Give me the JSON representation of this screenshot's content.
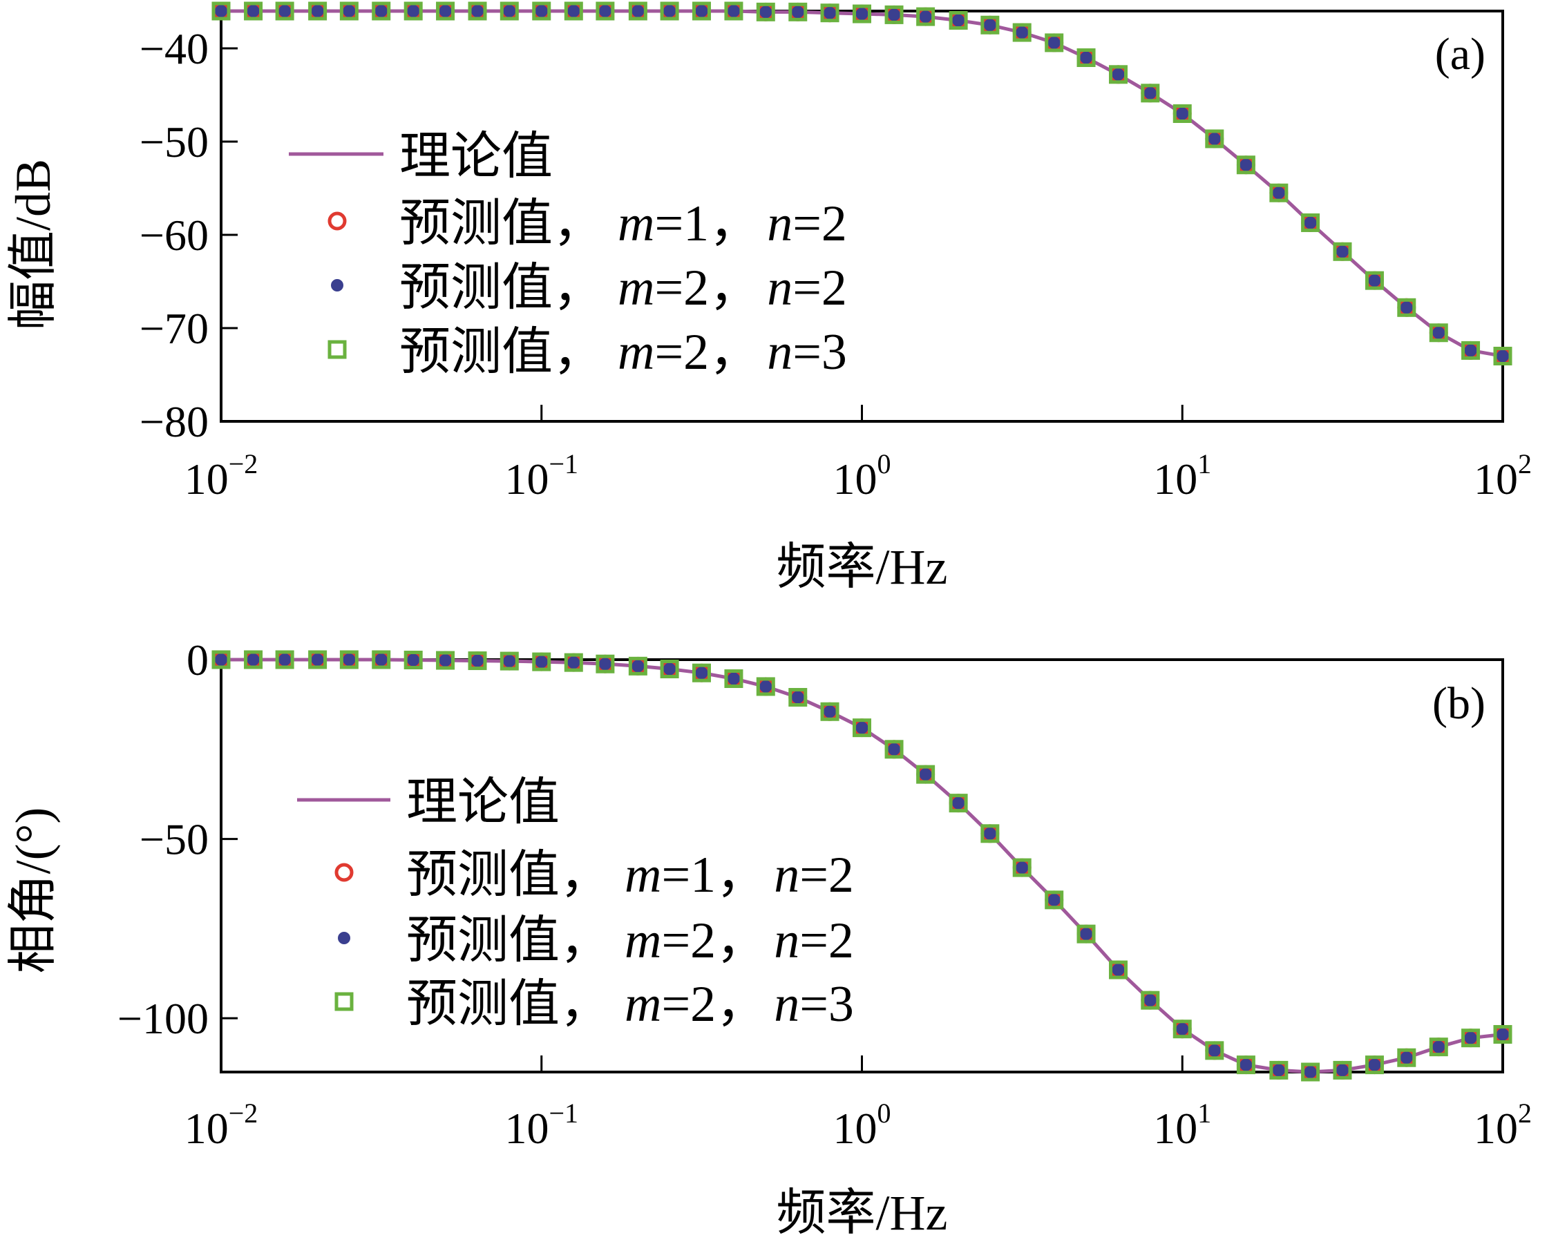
{
  "figure": {
    "panel_count": 2
  },
  "colors": {
    "theory_line": "#a0589b",
    "pred_m1n2": "#e03a30",
    "pred_m2n2": "#3a3f8f",
    "pred_m2n3": "#6ab23f",
    "axes": "#000000"
  },
  "chart_data": [
    {
      "type": "line",
      "panel_label": "(a)",
      "xlabel": "频率/Hz",
      "ylabel": "幅值/dB",
      "xscale": "log",
      "xlim": [
        0.01,
        100
      ],
      "ylim": [
        -80,
        -36
      ],
      "x_ticks": [
        {
          "base": "10",
          "exp": "−2",
          "value": 0.01
        },
        {
          "base": "10",
          "exp": "−1",
          "value": 0.1
        },
        {
          "base": "10",
          "exp": "0",
          "value": 1
        },
        {
          "base": "10",
          "exp": "1",
          "value": 10
        },
        {
          "base": "10",
          "exp": "2",
          "value": 100
        }
      ],
      "y_ticks": [
        {
          "label": "−40",
          "value": -40
        },
        {
          "label": "−50",
          "value": -50
        },
        {
          "label": "−60",
          "value": -60
        },
        {
          "label": "−70",
          "value": -70
        },
        {
          "label": "−80",
          "value": -80
        }
      ],
      "legend": {
        "placement": "left",
        "entries": [
          {
            "pre": "理论值",
            "m": "",
            "n": "",
            "marker": "line"
          },
          {
            "pre": "预测值，",
            "m": "=1，",
            "n": "=2",
            "marker": "circle"
          },
          {
            "pre": "预测值，",
            "m": "=2，",
            "n": "=2",
            "marker": "dot"
          },
          {
            "pre": "预测值，",
            "m": "=2，",
            "n": "=3",
            "marker": "square"
          }
        ]
      },
      "x": [
        0.01,
        0.0126,
        0.0158,
        0.02,
        0.0251,
        0.0316,
        0.0398,
        0.0501,
        0.0631,
        0.0794,
        0.1,
        0.126,
        0.158,
        0.2,
        0.251,
        0.316,
        0.398,
        0.501,
        0.631,
        0.794,
        1.0,
        1.26,
        1.58,
        2.0,
        2.51,
        3.16,
        3.98,
        5.01,
        6.31,
        7.94,
        10.0,
        12.6,
        15.8,
        20.0,
        25.1,
        31.6,
        39.8,
        50.1,
        63.1,
        79.4,
        100
      ],
      "series": [
        {
          "name": "理论值",
          "style": "line",
          "values": [
            -36.0,
            -36.0,
            -36.0,
            -36.0,
            -36.0,
            -36.0,
            -36.0,
            -36.0,
            -36.0,
            -36.0,
            -36.0,
            -36.0,
            -36.0,
            -36.0,
            -36.0,
            -36.0,
            -36.0,
            -36.1,
            -36.1,
            -36.2,
            -36.3,
            -36.4,
            -36.6,
            -37.0,
            -37.5,
            -38.3,
            -39.4,
            -41.0,
            -42.8,
            -44.8,
            -47.0,
            -49.7,
            -52.5,
            -55.5,
            -58.7,
            -61.8,
            -64.9,
            -67.8,
            -70.5,
            -72.4,
            -73.0
          ]
        },
        {
          "name": "预测值，m=1，n=2",
          "style": "circle",
          "values": [
            -36.0,
            -36.0,
            -36.0,
            -36.0,
            -36.0,
            -36.0,
            -36.0,
            -36.0,
            -36.0,
            -36.0,
            -36.0,
            -36.0,
            -36.0,
            -36.0,
            -36.0,
            -36.0,
            -36.0,
            -36.1,
            -36.1,
            -36.2,
            -36.3,
            -36.4,
            -36.6,
            -37.0,
            -37.5,
            -38.3,
            -39.4,
            -41.0,
            -42.8,
            -44.8,
            -47.0,
            -49.7,
            -52.5,
            -55.5,
            -58.7,
            -61.8,
            -64.9,
            -67.8,
            -70.5,
            -72.4,
            -73.0
          ]
        },
        {
          "name": "预测值，m=2，n=2",
          "style": "dot",
          "values": [
            -36.0,
            -36.0,
            -36.0,
            -36.0,
            -36.0,
            -36.0,
            -36.0,
            -36.0,
            -36.0,
            -36.0,
            -36.0,
            -36.0,
            -36.0,
            -36.0,
            -36.0,
            -36.0,
            -36.0,
            -36.1,
            -36.1,
            -36.2,
            -36.3,
            -36.4,
            -36.6,
            -37.0,
            -37.5,
            -38.3,
            -39.4,
            -41.0,
            -42.8,
            -44.8,
            -47.0,
            -49.7,
            -52.5,
            -55.5,
            -58.7,
            -61.8,
            -64.9,
            -67.8,
            -70.5,
            -72.4,
            -73.0
          ]
        },
        {
          "name": "预测值，m=2，n=3",
          "style": "square",
          "values": [
            -36.0,
            -36.0,
            -36.0,
            -36.0,
            -36.0,
            -36.0,
            -36.0,
            -36.0,
            -36.0,
            -36.0,
            -36.0,
            -36.0,
            -36.0,
            -36.0,
            -36.0,
            -36.0,
            -36.0,
            -36.1,
            -36.1,
            -36.2,
            -36.3,
            -36.4,
            -36.6,
            -37.0,
            -37.5,
            -38.3,
            -39.4,
            -41.0,
            -42.8,
            -44.8,
            -47.0,
            -49.7,
            -52.5,
            -55.5,
            -58.7,
            -61.8,
            -64.9,
            -67.8,
            -70.5,
            -72.4,
            -73.0
          ]
        }
      ]
    },
    {
      "type": "line",
      "panel_label": "(b)",
      "xlabel": "频率/Hz",
      "ylabel": "相角/(°)",
      "xscale": "log",
      "xlim": [
        0.01,
        100
      ],
      "ylim": [
        -115,
        0
      ],
      "x_ticks": [
        {
          "base": "10",
          "exp": "−2",
          "value": 0.01
        },
        {
          "base": "10",
          "exp": "−1",
          "value": 0.1
        },
        {
          "base": "10",
          "exp": "0",
          "value": 1
        },
        {
          "base": "10",
          "exp": "1",
          "value": 10
        },
        {
          "base": "10",
          "exp": "2",
          "value": 100
        }
      ],
      "y_ticks": [
        {
          "label": "0",
          "value": 0
        },
        {
          "label": "−50",
          "value": -50
        },
        {
          "label": "−100",
          "value": -100
        }
      ],
      "legend": {
        "placement": "left",
        "entries": [
          {
            "pre": "理论值",
            "m": "",
            "n": "",
            "marker": "line"
          },
          {
            "pre": "预测值，",
            "m": "=1，",
            "n": "=2",
            "marker": "circle"
          },
          {
            "pre": "预测值，",
            "m": "=2，",
            "n": "=2",
            "marker": "dot"
          },
          {
            "pre": "预测值，",
            "m": "=2，",
            "n": "=3",
            "marker": "square"
          }
        ]
      },
      "x": [
        0.01,
        0.0126,
        0.0158,
        0.02,
        0.0251,
        0.0316,
        0.0398,
        0.0501,
        0.0631,
        0.0794,
        0.1,
        0.126,
        0.158,
        0.2,
        0.251,
        0.316,
        0.398,
        0.501,
        0.631,
        0.794,
        1.0,
        1.26,
        1.58,
        2.0,
        2.51,
        3.16,
        3.98,
        5.01,
        6.31,
        7.94,
        10.0,
        12.6,
        15.8,
        20.0,
        25.1,
        31.6,
        39.8,
        50.1,
        63.1,
        79.4,
        100
      ],
      "series": [
        {
          "name": "理论值",
          "style": "line",
          "values": [
            0.0,
            0.0,
            0.0,
            0.0,
            0.0,
            0.0,
            -0.1,
            -0.2,
            -0.3,
            -0.4,
            -0.6,
            -0.8,
            -1.2,
            -1.8,
            -2.6,
            -3.7,
            -5.3,
            -7.5,
            -10.5,
            -14.5,
            -19.0,
            -25.0,
            -32.0,
            -40.0,
            -48.5,
            -58.0,
            -67.0,
            -76.5,
            -86.5,
            -95.0,
            -103.0,
            -109.0,
            -113.0,
            -114.5,
            -115.0,
            -114.5,
            -113.0,
            -111.0,
            -108.0,
            -105.5,
            -104.5
          ]
        },
        {
          "name": "预测值，m=1，n=2",
          "style": "circle",
          "values": [
            0.0,
            0.0,
            0.0,
            0.0,
            0.0,
            0.0,
            -0.1,
            -0.2,
            -0.3,
            -0.4,
            -0.6,
            -0.8,
            -1.2,
            -1.8,
            -2.6,
            -3.7,
            -5.3,
            -7.5,
            -10.5,
            -14.5,
            -19.0,
            -25.0,
            -32.0,
            -40.0,
            -48.5,
            -58.0,
            -67.0,
            -76.5,
            -86.5,
            -95.0,
            -103.0,
            -109.0,
            -113.0,
            -114.5,
            -115.0,
            -114.5,
            -113.0,
            -111.0,
            -108.0,
            -105.5,
            -104.5
          ]
        },
        {
          "name": "预测值，m=2，n=2",
          "style": "dot",
          "values": [
            0.0,
            0.0,
            0.0,
            0.0,
            0.0,
            0.0,
            -0.1,
            -0.2,
            -0.3,
            -0.4,
            -0.6,
            -0.8,
            -1.2,
            -1.8,
            -2.6,
            -3.7,
            -5.3,
            -7.5,
            -10.5,
            -14.5,
            -19.0,
            -25.0,
            -32.0,
            -40.0,
            -48.5,
            -58.0,
            -67.0,
            -76.5,
            -86.5,
            -95.0,
            -103.0,
            -109.0,
            -113.0,
            -114.5,
            -115.0,
            -114.5,
            -113.0,
            -111.0,
            -108.0,
            -105.5,
            -104.5
          ]
        },
        {
          "name": "预测值，m=2，n=3",
          "style": "square",
          "values": [
            0.0,
            0.0,
            0.0,
            0.0,
            0.0,
            0.0,
            -0.1,
            -0.2,
            -0.3,
            -0.4,
            -0.6,
            -0.8,
            -1.2,
            -1.8,
            -2.6,
            -3.7,
            -5.3,
            -7.5,
            -10.5,
            -14.5,
            -19.0,
            -25.0,
            -32.0,
            -40.0,
            -48.5,
            -58.0,
            -67.0,
            -76.5,
            -86.5,
            -95.0,
            -103.0,
            -109.0,
            -113.0,
            -114.5,
            -115.0,
            -114.5,
            -113.0,
            -111.0,
            -108.0,
            -105.5,
            -104.5
          ]
        }
      ]
    }
  ]
}
